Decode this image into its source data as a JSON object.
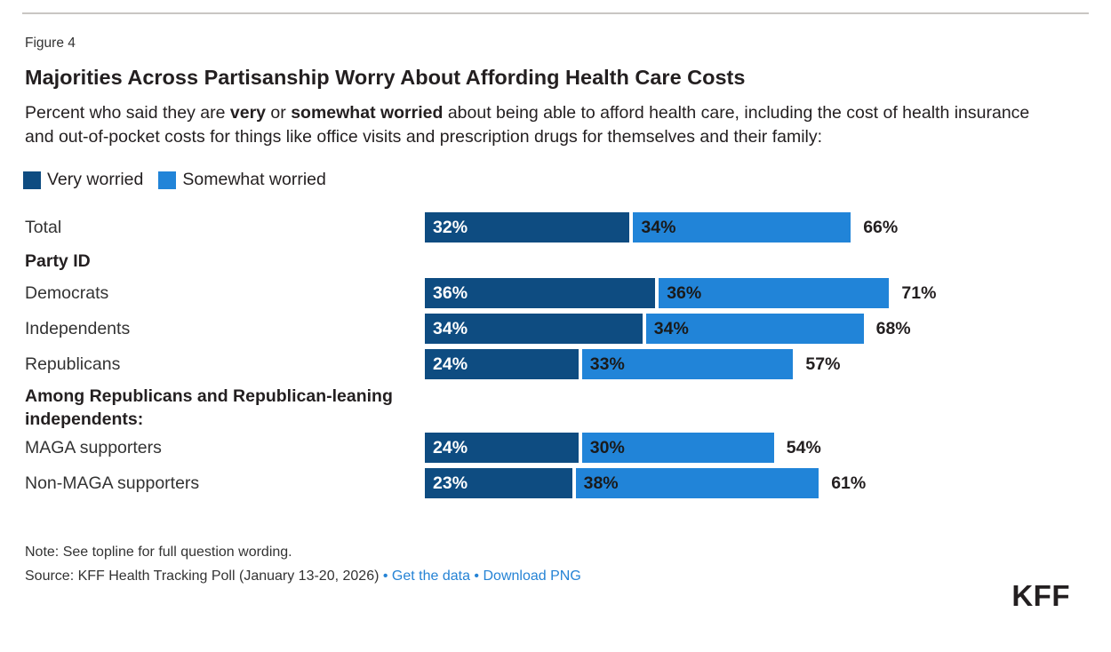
{
  "figure_label": "Figure 4",
  "title": "Majorities Across Partisanship Worry About Affording Health Care Costs",
  "subtitle_segments": [
    {
      "text": "Percent who said they are ",
      "bold": false
    },
    {
      "text": "very",
      "bold": true
    },
    {
      "text": " or ",
      "bold": false
    },
    {
      "text": "somewhat worried",
      "bold": true
    },
    {
      "text": " about being able to afford health care, including the cost of health insurance and out-of-pocket costs for things like office visits and prescription drugs for themselves and their family:",
      "bold": false
    }
  ],
  "colors": {
    "very_worried": "#0e4c81",
    "somewhat_worried": "#2184d8",
    "link": "#2583d5",
    "heading_text": "#231f20",
    "body_text": "#333333",
    "divider": "#c9c6c3"
  },
  "chart_data": {
    "type": "bar",
    "orientation": "horizontal",
    "stacked": true,
    "value_unit": "%",
    "xmax": 100,
    "legend_position": "top-left",
    "series": [
      {
        "name": "Very worried",
        "color": "#0e4c81"
      },
      {
        "name": "Somewhat worried",
        "color": "#2184d8"
      }
    ],
    "rows": [
      {
        "kind": "bar",
        "label": "Total",
        "values": [
          32,
          34
        ],
        "total": 66
      },
      {
        "kind": "header",
        "label": "Party ID"
      },
      {
        "kind": "bar",
        "label": "Democrats",
        "values": [
          36,
          36
        ],
        "total": 71
      },
      {
        "kind": "bar",
        "label": "Independents",
        "values": [
          34,
          34
        ],
        "total": 68
      },
      {
        "kind": "bar",
        "label": "Republicans",
        "values": [
          24,
          33
        ],
        "total": 57
      },
      {
        "kind": "header",
        "label": "Among Republicans and Republican-leaning independents:"
      },
      {
        "kind": "bar",
        "label": "MAGA supporters",
        "values": [
          24,
          30
        ],
        "total": 54
      },
      {
        "kind": "bar",
        "label": "Non-MAGA supporters",
        "values": [
          23,
          38
        ],
        "total": 61
      }
    ]
  },
  "footer": {
    "note": "Note: See topline for full question wording.",
    "source_prefix": "Source: KFF Health Tracking Poll (January 13-20, 2026)",
    "separator": "•",
    "links": [
      "Get the data",
      "Download PNG"
    ],
    "logo": "KFF"
  }
}
